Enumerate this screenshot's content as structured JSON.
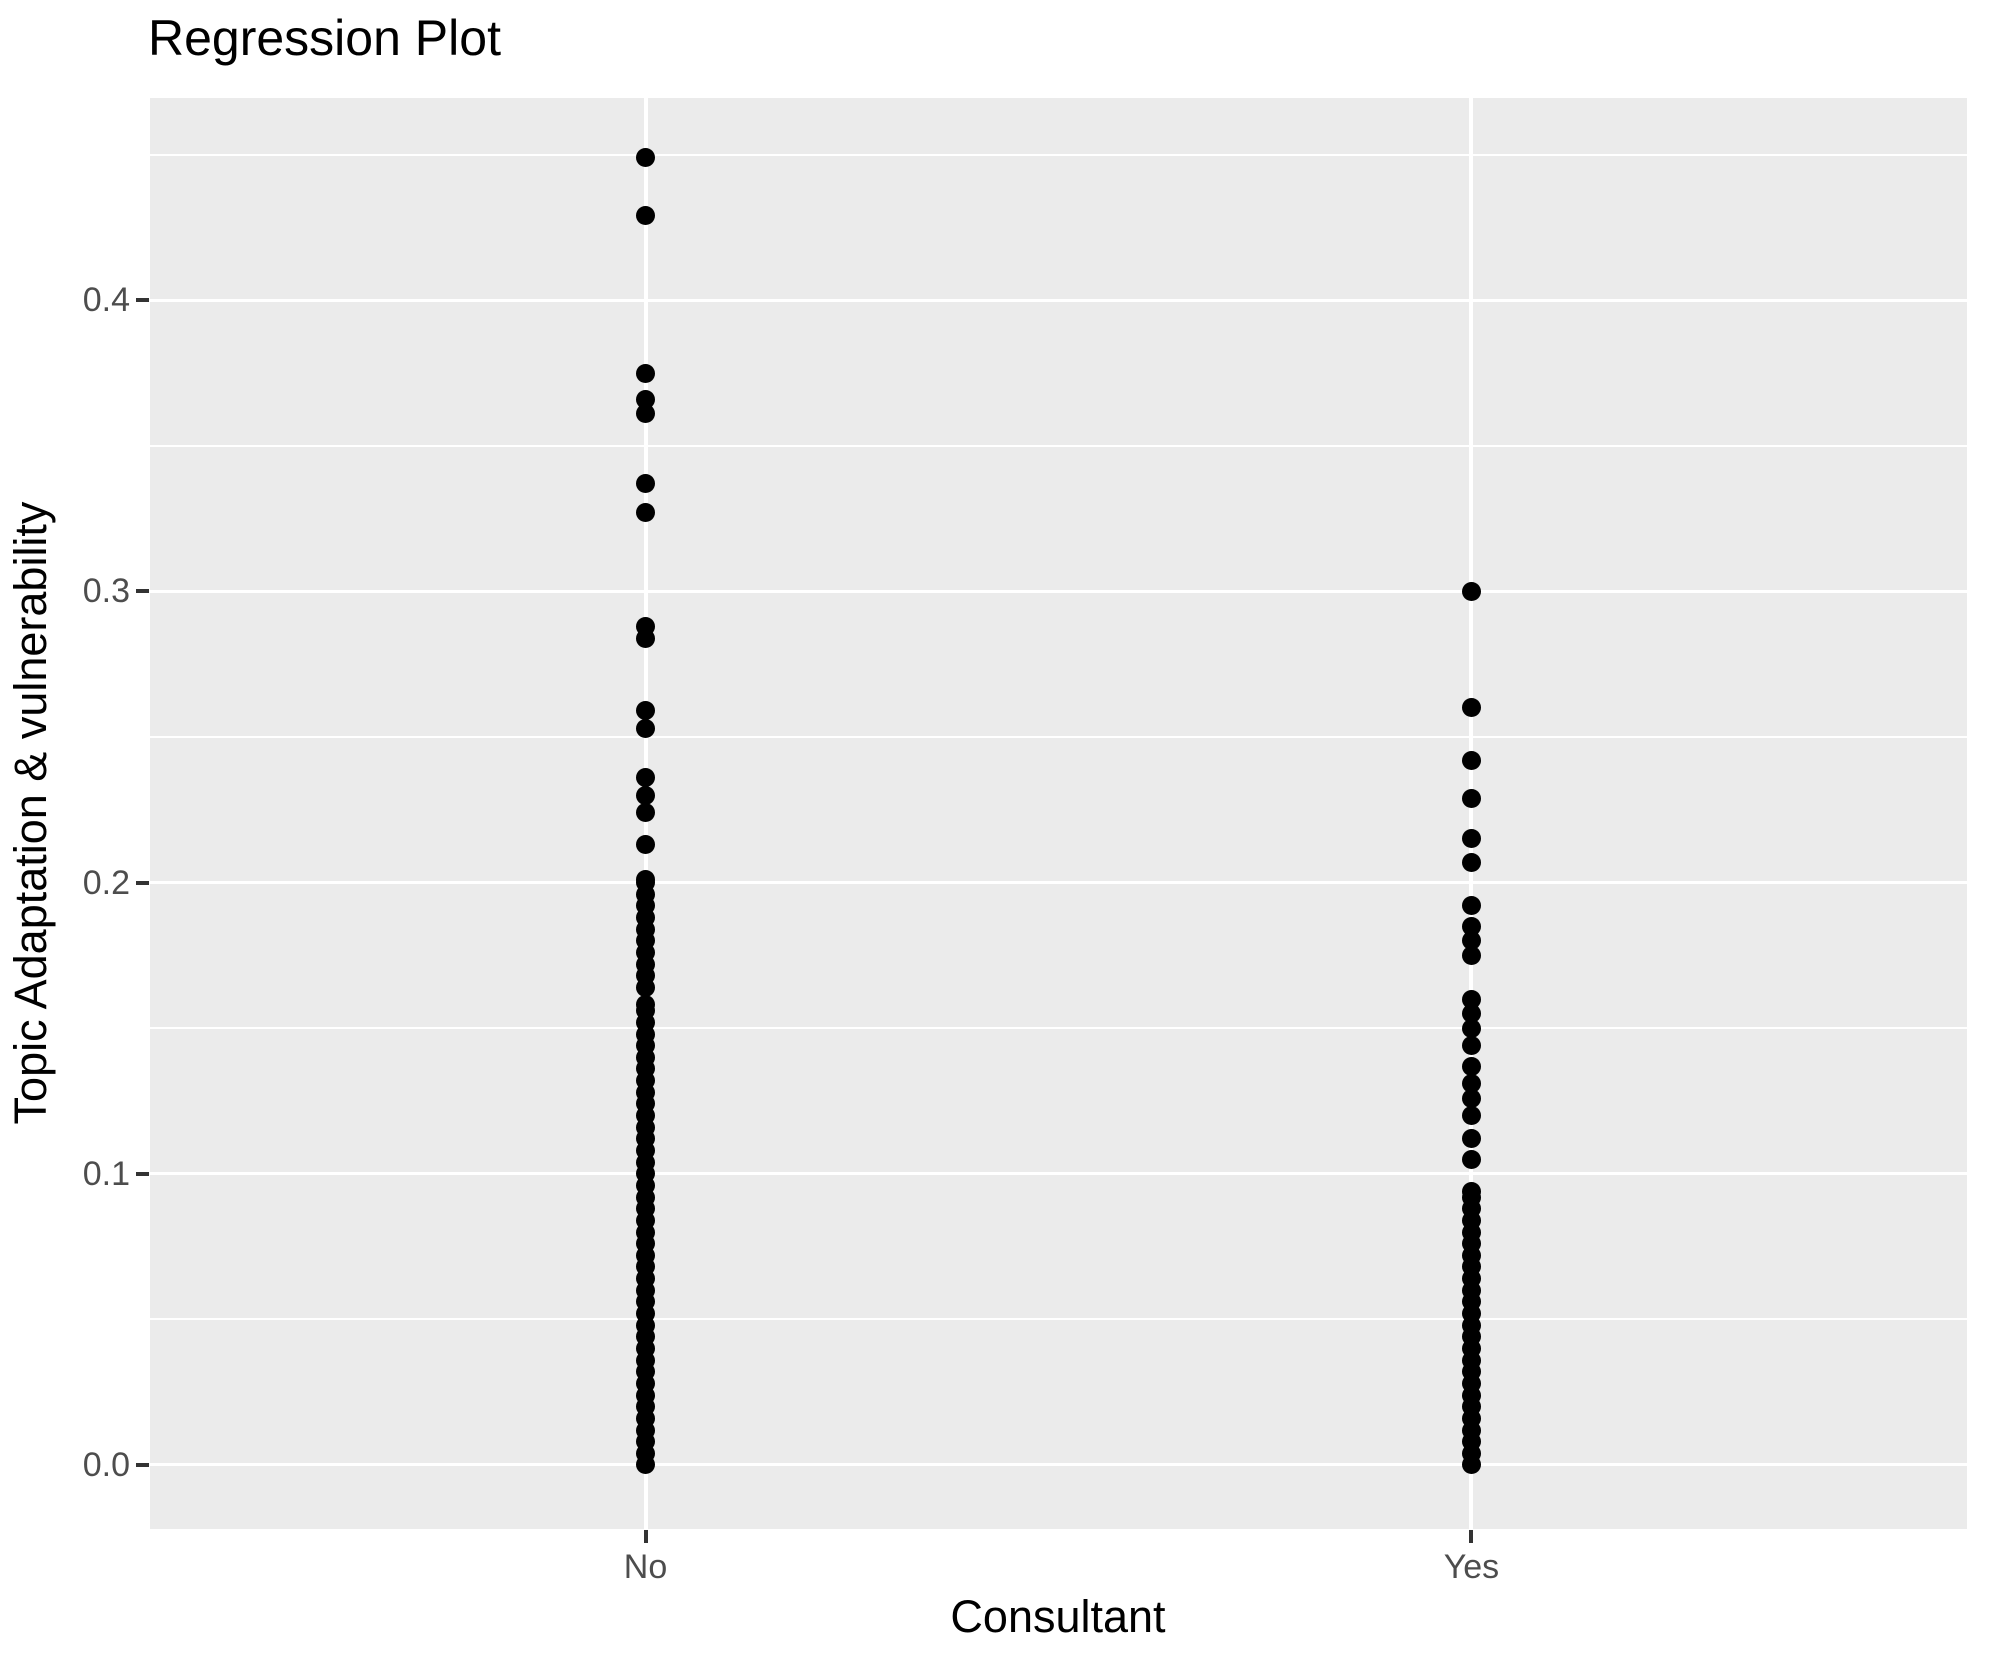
{
  "chart_data": {
    "type": "scatter",
    "subtype": "strip-plot",
    "title": "Regression Plot",
    "xlabel": "Consultant",
    "ylabel": "Topic Adaptation & vulnerability",
    "categories": [
      "No",
      "Yes"
    ],
    "ylim": [
      -0.022,
      0.4695
    ],
    "yticks": [
      0,
      0.1,
      0.2,
      0.3,
      0.4
    ],
    "ytick_labels": [
      "0.0",
      "0.1",
      "0.2",
      "0.3",
      "0.4"
    ],
    "minor_grid_step": 0.05,
    "grid": "major+minor horizontal white, major vertical at categories",
    "legend_position": "none",
    "panel_bg": "#EBEBEB",
    "grid_color": "#FFFFFF",
    "point_color": "#000000",
    "tick_label_color": "#4D4D4D",
    "series": [
      {
        "name": "No",
        "points": [
          0.449,
          0.429,
          0.375,
          0.366,
          0.361,
          0.337,
          0.327,
          0.288,
          0.284,
          0.259,
          0.253,
          0.236,
          0.23,
          0.224,
          0.213
        ],
        "dense_ranges": [
          [
            0.0,
            0.158
          ],
          [
            0.164,
            0.201
          ]
        ]
      },
      {
        "name": "Yes",
        "points": [
          0.3,
          0.26,
          0.242,
          0.229,
          0.215,
          0.207,
          0.192,
          0.185,
          0.18,
          0.175,
          0.16,
          0.155,
          0.15,
          0.144,
          0.137,
          0.131,
          0.126,
          0.12,
          0.112,
          0.105
        ],
        "dense_ranges": [
          [
            0.0,
            0.094
          ]
        ]
      }
    ]
  }
}
